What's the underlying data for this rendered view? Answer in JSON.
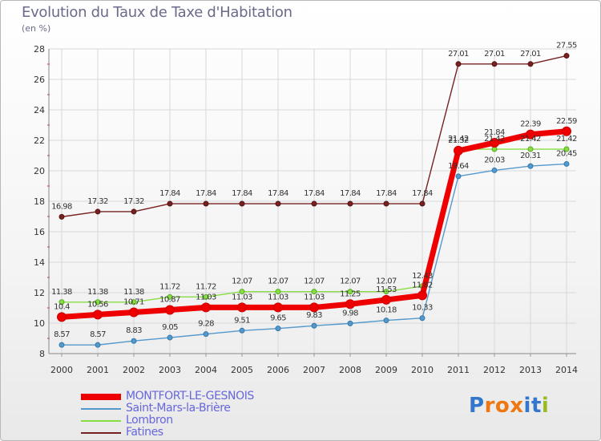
{
  "header": {
    "title": "Evolution du Taux de Taxe d'Habitation",
    "unit": "(en %)"
  },
  "logo": {
    "text": "Proxiti",
    "colors": [
      "#3377cc",
      "#ee7711",
      "#ee7711",
      "#ee7711",
      "#3377cc",
      "#3377cc",
      "#99bb22"
    ]
  },
  "chart_data": {
    "type": "line",
    "x": [
      "2000",
      "2001",
      "2002",
      "2003",
      "2004",
      "2005",
      "2006",
      "2007",
      "2008",
      "2009",
      "2010",
      "2011",
      "2012",
      "2013",
      "2014"
    ],
    "ylim": [
      8,
      28
    ],
    "yticks": [
      8,
      10,
      12,
      14,
      16,
      18,
      20,
      22,
      24,
      26,
      28
    ],
    "grid": true,
    "legend_position": "bottom-left",
    "series": [
      {
        "name": "MONTFORT-LE-GESNOIS",
        "color": "#ee0000",
        "values": [
          10.4,
          10.56,
          10.71,
          10.87,
          11.03,
          11.03,
          11.03,
          11.03,
          11.25,
          11.53,
          11.82,
          21.32,
          21.84,
          22.39,
          22.59
        ],
        "labels": [
          "10.4",
          "10.56",
          "10.71",
          "10.87",
          "11.03",
          "11.03",
          "11.03",
          "11.03",
          "11.25",
          "11.53",
          "11.82",
          "21.32",
          "21.84",
          "22.39",
          "22.59"
        ]
      },
      {
        "name": "Saint-Mars-la-Brière",
        "color": "#5599cc",
        "values": [
          8.57,
          8.57,
          8.83,
          9.05,
          9.28,
          9.51,
          9.65,
          9.83,
          9.98,
          10.18,
          10.33,
          19.64,
          20.03,
          20.31,
          20.45
        ],
        "labels": [
          "8.57",
          "8.57",
          "8.83",
          "9.05",
          "9.28",
          "9.51",
          "9.65",
          "9.83",
          "9.98",
          "10.18",
          "10.33",
          "19.64",
          "20.03",
          "20.31",
          "20.45"
        ]
      },
      {
        "name": "Lombron",
        "color": "#88dd44",
        "values": [
          11.38,
          11.38,
          11.38,
          11.72,
          11.72,
          12.07,
          12.07,
          12.07,
          12.07,
          12.07,
          12.43,
          21.42,
          21.42,
          21.42,
          21.42
        ],
        "labels": [
          "11.38",
          "11.38",
          "11.38",
          "11.72",
          "11.72",
          "12.07",
          "12.07",
          "12.07",
          "12.07",
          "12.07",
          "12.43",
          "21.42",
          "21.42",
          "21.42",
          "21.42"
        ]
      },
      {
        "name": "Fatines",
        "color": "#772222",
        "values": [
          16.98,
          17.32,
          17.32,
          17.84,
          17.84,
          17.84,
          17.84,
          17.84,
          17.84,
          17.84,
          17.84,
          27.01,
          27.01,
          27.01,
          27.55
        ],
        "labels": [
          "16.98",
          "17.32",
          "17.32",
          "17.84",
          "17.84",
          "17.84",
          "17.84",
          "17.84",
          "17.84",
          "17.84",
          "17.84",
          "27.01",
          "27.01",
          "27.01",
          "27.55"
        ]
      }
    ]
  }
}
